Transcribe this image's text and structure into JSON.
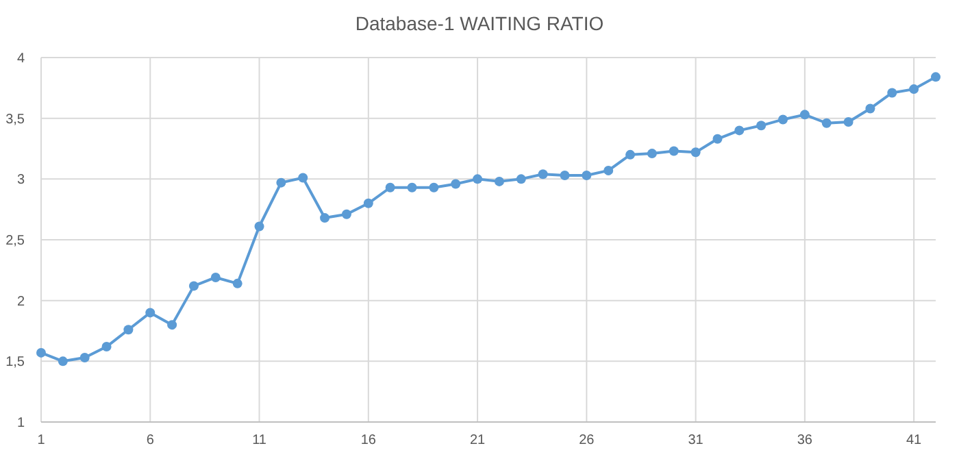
{
  "chart_data": {
    "type": "line",
    "title": "Database-1 WAITING RATIO",
    "x": [
      1,
      2,
      3,
      4,
      5,
      6,
      7,
      8,
      9,
      10,
      11,
      12,
      13,
      14,
      15,
      16,
      17,
      18,
      19,
      20,
      21,
      22,
      23,
      24,
      25,
      26,
      27,
      28,
      29,
      30,
      31,
      32,
      33,
      34,
      35,
      36,
      37,
      38,
      39,
      40,
      41,
      42
    ],
    "series": [
      {
        "color": "#5b9bd5",
        "values": [
          1.57,
          1.5,
          1.53,
          1.62,
          1.76,
          1.9,
          1.8,
          2.12,
          2.19,
          2.14,
          2.61,
          2.97,
          3.01,
          2.68,
          2.71,
          2.8,
          2.93,
          2.93,
          2.93,
          2.96,
          3.0,
          2.98,
          3.0,
          3.04,
          3.03,
          3.03,
          3.07,
          3.2,
          3.21,
          3.23,
          3.22,
          3.33,
          3.4,
          3.44,
          3.49,
          3.53,
          3.46,
          3.47,
          3.58,
          3.71,
          3.74,
          3.84
        ]
      }
    ],
    "xlim": [
      1,
      42
    ],
    "xticks": [
      1,
      6,
      11,
      16,
      21,
      26,
      31,
      36,
      41
    ],
    "ylim": [
      1,
      4
    ],
    "yticks": [
      1,
      {
        "value": 1.5,
        "label": "1,5"
      },
      2,
      {
        "value": 2.5,
        "label": "2,5"
      },
      3,
      {
        "value": 3.5,
        "label": "3,5"
      },
      4
    ],
    "grid": true,
    "marker": "circle",
    "line_style": "solid"
  }
}
